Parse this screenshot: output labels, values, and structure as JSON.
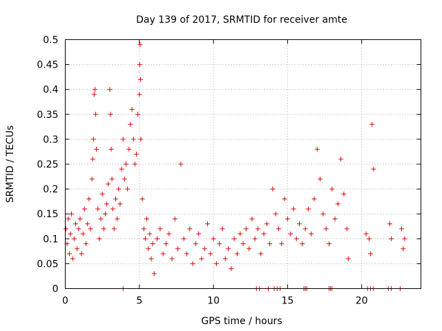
{
  "chart_data": {
    "type": "scatter",
    "title": "Day 139 of 2017, SRMTID for receiver amte",
    "xlabel": "GPS time / hours",
    "ylabel": "SRMTID / TECUs",
    "xlim": [
      0,
      24
    ],
    "ylim": [
      0,
      0.5
    ],
    "grid": true,
    "marker": "+",
    "color": "#e00000",
    "x_ticks": [
      0,
      5,
      10,
      15,
      20
    ],
    "x_tick_labels": [
      "0",
      "5",
      "10",
      "15",
      "20"
    ],
    "y_ticks": [
      0,
      0.05,
      0.1,
      0.15,
      0.2,
      0.25,
      0.3,
      0.35,
      0.4,
      0.45,
      0.5
    ],
    "y_tick_labels": [
      "0",
      "0.05",
      "0.1",
      "0.15",
      "0.2",
      "0.25",
      "0.3",
      "0.35",
      "0.4",
      "0.45",
      "0.5"
    ],
    "series": [
      {
        "name": "SRMTID",
        "x": [
          0.05,
          0.12,
          0.2,
          0.28,
          0.35,
          0.42,
          0.5,
          0.6,
          0.7,
          0.8,
          0.9,
          1.0,
          1.1,
          1.2,
          1.3,
          1.4,
          1.5,
          1.6,
          1.7,
          1.8,
          1.85,
          1.9,
          1.95,
          2.0,
          2.05,
          2.1,
          2.2,
          2.3,
          2.4,
          2.5,
          2.6,
          2.7,
          2.8,
          2.9,
          3.0,
          3.05,
          3.1,
          3.15,
          3.2,
          3.3,
          3.4,
          3.5,
          3.6,
          3.7,
          3.8,
          3.9,
          4.0,
          4.1,
          4.2,
          4.3,
          4.4,
          4.5,
          4.6,
          4.7,
          4.8,
          4.9,
          5.0,
          5.02,
          5.05,
          5.08,
          5.1,
          5.2,
          5.3,
          5.4,
          5.5,
          5.6,
          5.7,
          5.8,
          5.9,
          6.0,
          6.2,
          6.4,
          6.6,
          6.8,
          7.0,
          7.2,
          7.4,
          7.6,
          7.8,
          8.0,
          8.2,
          8.4,
          8.6,
          8.8,
          9.0,
          9.2,
          9.4,
          9.6,
          9.8,
          10.0,
          10.2,
          10.4,
          10.6,
          10.8,
          11.0,
          11.2,
          11.4,
          11.6,
          11.8,
          12.0,
          12.2,
          12.4,
          12.6,
          12.8,
          13.0,
          13.2,
          13.4,
          13.6,
          13.8,
          14.0,
          14.2,
          14.4,
          14.6,
          14.8,
          15.0,
          15.2,
          15.4,
          15.6,
          15.8,
          16.0,
          16.2,
          16.4,
          16.6,
          16.8,
          17.0,
          17.2,
          17.4,
          17.6,
          17.8,
          18.0,
          18.2,
          18.4,
          18.6,
          18.8,
          19.0,
          19.1,
          20.3,
          20.5,
          20.6,
          20.7,
          20.8,
          21.9,
          22.0,
          22.7,
          22.8,
          22.9,
          3.9,
          12.9,
          13.1,
          13.7,
          14.1,
          14.3,
          14.5,
          16.1,
          16.2,
          16.3,
          17.8,
          17.9,
          18.0,
          20.4,
          20.6,
          20.8,
          21.8,
          22.0,
          22.6
        ],
        "y": [
          0.12,
          0.09,
          0.14,
          0.07,
          0.11,
          0.15,
          0.06,
          0.1,
          0.13,
          0.08,
          0.12,
          0.14,
          0.07,
          0.11,
          0.16,
          0.09,
          0.13,
          0.18,
          0.12,
          0.22,
          0.26,
          0.3,
          0.39,
          0.4,
          0.35,
          0.28,
          0.16,
          0.1,
          0.14,
          0.19,
          0.12,
          0.15,
          0.17,
          0.21,
          0.4,
          0.35,
          0.28,
          0.22,
          0.16,
          0.12,
          0.18,
          0.14,
          0.2,
          0.17,
          0.24,
          0.3,
          0.22,
          0.25,
          0.2,
          0.28,
          0.33,
          0.36,
          0.3,
          0.25,
          0.27,
          0.35,
          0.39,
          0.45,
          0.49,
          0.42,
          0.3,
          0.18,
          0.12,
          0.1,
          0.14,
          0.08,
          0.11,
          0.06,
          0.09,
          0.03,
          0.1,
          0.12,
          0.07,
          0.09,
          0.11,
          0.06,
          0.14,
          0.08,
          0.25,
          0.1,
          0.07,
          0.12,
          0.05,
          0.09,
          0.11,
          0.06,
          0.08,
          0.13,
          0.07,
          0.1,
          0.05,
          0.09,
          0.12,
          0.06,
          0.08,
          0.04,
          0.1,
          0.07,
          0.11,
          0.09,
          0.12,
          0.08,
          0.14,
          0.1,
          0.12,
          0.07,
          0.11,
          0.13,
          0.09,
          0.2,
          0.15,
          0.12,
          0.09,
          0.18,
          0.14,
          0.11,
          0.16,
          0.1,
          0.13,
          0.09,
          0.12,
          0.16,
          0.11,
          0.18,
          0.28,
          0.22,
          0.15,
          0.12,
          0.09,
          0.2,
          0.14,
          0.17,
          0.26,
          0.19,
          0.12,
          0.06,
          0.11,
          0.1,
          0.07,
          0.33,
          0.24,
          0.13,
          0.1,
          0.12,
          0.08,
          0.1,
          0.0,
          0.0,
          0.0,
          0.0,
          0.0,
          0.0,
          0.0,
          0.0,
          0.0,
          0.0,
          0.0,
          0.0,
          0.0,
          0.0,
          0.0,
          0.0,
          0.0,
          0.0,
          0.0
        ]
      }
    ]
  }
}
